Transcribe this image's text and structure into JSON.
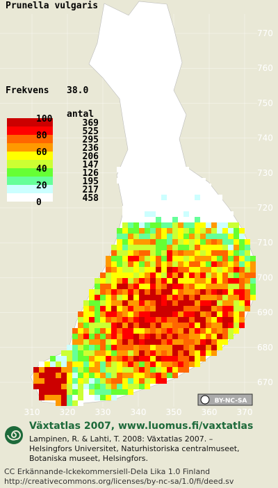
{
  "title": "Prunella vulgaris",
  "frequency": {
    "label": "Frekvens",
    "value": "38.0"
  },
  "legend": {
    "count_header": "antal",
    "scale_labels": [
      "100",
      "80",
      "60",
      "40",
      "20",
      "0"
    ],
    "colors": [
      "#cc0000",
      "#ff0000",
      "#ff6600",
      "#ff9900",
      "#ffff00",
      "#ccff33",
      "#66ff33",
      "#66ff99",
      "#ccffff",
      "#ffffff"
    ],
    "counts": [
      "369",
      "525",
      "295",
      "236",
      "206",
      "147",
      "126",
      "195",
      "217",
      "458"
    ]
  },
  "axis": {
    "right": [
      "770",
      "760",
      "750",
      "740",
      "730",
      "720",
      "710",
      "700",
      "690",
      "680",
      "670"
    ],
    "bottom": [
      "310",
      "320",
      "330",
      "340",
      "350",
      "360",
      "370"
    ]
  },
  "badge": "BY-NC-SA",
  "footer": {
    "heading": "Växtatlas 2007, www.luomus.fi/vaxtatlas",
    "citation": [
      "Lampinen, R. & Lahti, T. 2008: Växtatlas 2007. –",
      "Helsingfors Universitet, Naturhistoriska centralmuseet,",
      "Botaniska museet, Helsingfors."
    ],
    "license": [
      "CC Erkännande-Ickekommersiell-Dela Lika 1.0 Finland",
      "http://creativecommons.org/licenses/by-nc-sa/1.0/fi/deed.sv"
    ]
  }
}
